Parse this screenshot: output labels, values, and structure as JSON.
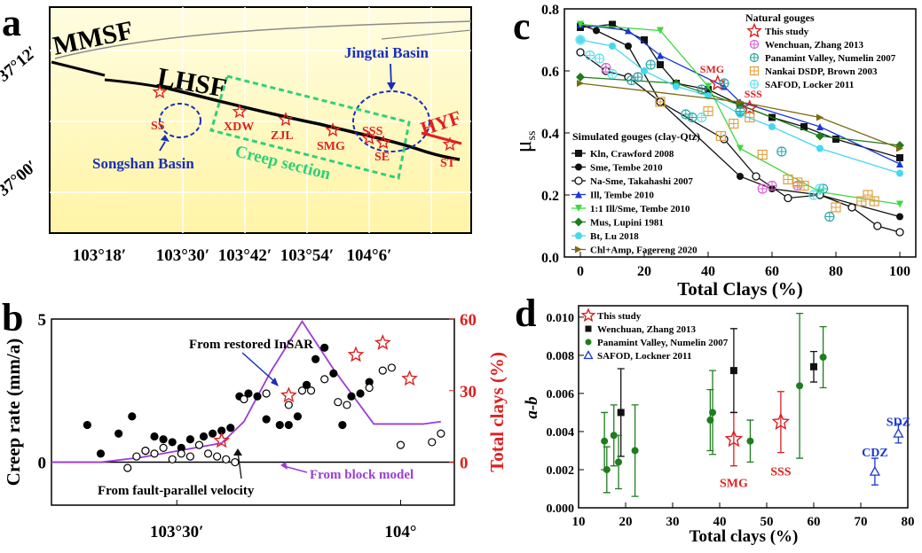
{
  "panels": {
    "a": {
      "letter": "a",
      "lat_labels": [
        "37°12′",
        "37°00′"
      ],
      "lon_labels": [
        "103°18′",
        "103°30′",
        "103°42′",
        "103°54′",
        "104°6′"
      ],
      "faults": [
        "MMSF",
        "LHSF",
        "HYF"
      ],
      "basins": [
        "Jingtai Basin",
        "Songshan Basin"
      ],
      "creep_section": "Creep section",
      "sites": [
        "SS",
        "XDW",
        "ZJL",
        "SMG",
        "SSS",
        "SE",
        "ST"
      ]
    },
    "b": {
      "letter": "b",
      "annotations": [
        "From restored InSAR",
        "From fault-parallel velocity",
        "From block model"
      ]
    },
    "c": {
      "letter": "c",
      "sites": [
        "SMG",
        "SSS"
      ],
      "legend_natural_title": "Natural gouges",
      "legend_simulated_title": "Simulated gouges (clay-Qtz)"
    },
    "d": {
      "letter": "d",
      "site_labels": [
        "SMG",
        "SSS",
        "CDZ",
        "SDZ"
      ]
    }
  },
  "chart_data": [
    {
      "panel": "b",
      "type": "scatter",
      "xlabel": "",
      "ylabel": "Creep rate (mm/a)",
      "y2label": "Total clays (%)",
      "xticks": [
        "103°30′",
        "104°"
      ],
      "xlim": [
        103.22,
        104.12
      ],
      "ylim": [
        -1.5,
        5.0
      ],
      "yticks": [
        0,
        5
      ],
      "y2lim": [
        -18,
        60
      ],
      "y2ticks": [
        0,
        30,
        60
      ],
      "series": [
        {
          "name": "From restored InSAR",
          "x": [
            103.3,
            103.33,
            103.37,
            103.4,
            103.43,
            103.45,
            103.47,
            103.49,
            103.51,
            103.53,
            103.56,
            103.58,
            103.6,
            103.62,
            103.64,
            103.66,
            103.68,
            103.7,
            103.73,
            103.75,
            103.77,
            103.79,
            103.81,
            103.83,
            103.85,
            103.87,
            103.89,
            103.91,
            103.93
          ],
          "y": [
            1.3,
            0.3,
            1.0,
            1.6,
            0.4,
            0.9,
            0.8,
            0.7,
            0.5,
            0.8,
            0.9,
            1.0,
            1.1,
            1.2,
            2.3,
            2.4,
            2.3,
            1.5,
            1.3,
            1.3,
            1.6,
            2.7,
            3.6,
            4.0,
            3.1,
            1.3,
            2.3,
            2.4,
            2.8
          ]
        },
        {
          "name": "From fault-parallel velocity",
          "x": [
            103.39,
            103.41,
            103.43,
            103.45,
            103.47,
            103.49,
            103.51,
            103.53,
            103.55,
            103.57,
            103.59,
            103.61,
            103.63,
            103.65,
            103.7,
            103.75,
            103.78,
            103.8,
            103.83,
            103.86,
            103.88,
            103.93,
            103.96,
            103.98,
            104.0,
            104.07,
            104.09
          ],
          "y": [
            -0.2,
            0.2,
            0.4,
            0.3,
            0.5,
            0.1,
            0.3,
            0.2,
            0.6,
            0.3,
            0.2,
            0.1,
            0.0,
            2.2,
            2.4,
            2.0,
            2.5,
            2.5,
            2.9,
            2.1,
            2.0,
            2.6,
            3.2,
            3.3,
            0.6,
            0.7,
            1.0
          ]
        }
      ],
      "block_model_total_clays": {
        "name": "From block model",
        "x": [
          103.22,
          103.33,
          103.42,
          103.54,
          103.6,
          103.65,
          103.71,
          103.78,
          103.85,
          103.94,
          104.05,
          104.09
        ],
        "y": [
          0,
          0,
          2,
          6,
          8,
          17,
          38,
          59,
          39,
          16,
          16,
          17
        ]
      },
      "samples_total_clays": {
        "sites": [
          "SS",
          "SMG",
          "SSS",
          "SE",
          "ST"
        ],
        "x": [
          103.6,
          103.75,
          103.9,
          103.96,
          104.02
        ],
        "y": [
          9,
          28,
          45,
          50,
          35
        ]
      }
    },
    {
      "panel": "c",
      "type": "line",
      "xlabel": "Total Clays (%)",
      "ylabel": "μss",
      "xlim": [
        -5,
        105
      ],
      "ylim": [
        0.0,
        0.8
      ],
      "xticks": [
        0,
        20,
        40,
        60,
        80,
        100
      ],
      "yticks": [
        0.0,
        0.2,
        0.4,
        0.6,
        0.8
      ],
      "series": [
        {
          "name": "Kln, Crawford 2008",
          "marker": "square",
          "color": "#111111",
          "x": [
            0,
            10,
            20,
            25,
            30,
            40,
            50,
            60,
            70,
            80,
            100
          ],
          "y": [
            0.74,
            0.75,
            0.7,
            0.62,
            0.56,
            0.54,
            0.49,
            0.45,
            0.42,
            0.38,
            0.32
          ]
        },
        {
          "name": "Sme, Tembe 2010",
          "marker": "circle-filled",
          "color": "#111111",
          "x": [
            0,
            5,
            15,
            25,
            50,
            60,
            75,
            100
          ],
          "y": [
            0.75,
            0.73,
            0.68,
            0.5,
            0.26,
            0.22,
            0.2,
            0.13
          ]
        },
        {
          "name": "Na-Sme, Takahashi 2007",
          "marker": "circle-open",
          "color": "#111111",
          "x": [
            0,
            8,
            15,
            25,
            45,
            55,
            65,
            75,
            85,
            93,
            100
          ],
          "y": [
            0.66,
            0.6,
            0.58,
            0.5,
            0.38,
            0.26,
            0.19,
            0.2,
            0.16,
            0.1,
            0.08
          ]
        },
        {
          "name": "Ill, Tembe 2010",
          "marker": "triangle-up",
          "color": "#1a37d6",
          "x": [
            0,
            15,
            25,
            45,
            50,
            75,
            100
          ],
          "y": [
            0.75,
            0.73,
            0.65,
            0.55,
            0.5,
            0.42,
            0.3
          ]
        },
        {
          "name": "1:1 Ill/Sme, Tembe 2010",
          "marker": "triangle-down",
          "color": "#3fd83f",
          "x": [
            0,
            25,
            40,
            50,
            75,
            100
          ],
          "y": [
            0.75,
            0.73,
            0.55,
            0.35,
            0.21,
            0.17
          ]
        },
        {
          "name": "Mus, Lupini 1981",
          "marker": "diamond",
          "color": "#1e7d1e",
          "x": [
            0,
            30,
            50,
            75,
            100
          ],
          "y": [
            0.58,
            0.56,
            0.49,
            0.39,
            0.36
          ]
        },
        {
          "name": "Bt, Lu 2018",
          "marker": "circle-filled",
          "color": "#44d9ee",
          "x": [
            0,
            10,
            20,
            30,
            40,
            50,
            60,
            75,
            100
          ],
          "y": [
            0.7,
            0.68,
            0.6,
            0.55,
            0.52,
            0.46,
            0.42,
            0.35,
            0.27
          ]
        },
        {
          "name": "Chl+Amp, Fagereng 2020",
          "marker": "triangle-right",
          "color": "#7c6a10",
          "x": [
            0,
            50,
            75,
            100
          ],
          "y": [
            0.56,
            0.5,
            0.45,
            0.35
          ]
        }
      ],
      "points": [
        {
          "name": "This study",
          "marker": "star-open",
          "color": "#d92020",
          "x": [
            43,
            53
          ],
          "y": [
            0.56,
            0.48
          ]
        },
        {
          "name": "Wenchuan, Zhang 2013",
          "marker": "circle-plus",
          "color": "#d95cd9",
          "x": [
            8,
            18,
            57,
            60,
            68
          ],
          "y": [
            0.61,
            0.58,
            0.22,
            0.23,
            0.23
          ]
        },
        {
          "name": "Panamint Valley, Numelin 2007",
          "marker": "circle-plus",
          "color": "#2aa6a6",
          "x": [
            16,
            18,
            22,
            33,
            35,
            38,
            45,
            50,
            63,
            76,
            78
          ],
          "y": [
            0.57,
            0.58,
            0.62,
            0.46,
            0.45,
            0.54,
            0.56,
            0.47,
            0.34,
            0.22,
            0.13
          ]
        },
        {
          "name": "Nankai DSDP, Brown 2003",
          "marker": "square-plus",
          "color": "#e0a040",
          "x": [
            25,
            40,
            44,
            48,
            53,
            57,
            65,
            68,
            70,
            80,
            88,
            90,
            92
          ],
          "y": [
            0.5,
            0.47,
            0.39,
            0.43,
            0.45,
            0.33,
            0.25,
            0.24,
            0.23,
            0.16,
            0.18,
            0.2,
            0.18
          ]
        },
        {
          "name": "SAFOD, Locker 2011",
          "marker": "circle-plus",
          "color": "#5fe0ee",
          "x": [
            0,
            3,
            6,
            10,
            38,
            73,
            75
          ],
          "y": [
            0.7,
            0.65,
            0.64,
            0.59,
            0.45,
            0.2,
            0.22
          ]
        }
      ]
    },
    {
      "panel": "d",
      "type": "scatter",
      "xlabel": "Total clays (%)",
      "ylabel": "a-b",
      "xlim": [
        10,
        80
      ],
      "ylim": [
        0.0,
        0.0106
      ],
      "xticks": [
        10,
        20,
        30,
        40,
        50,
        60,
        70,
        80
      ],
      "yticks": [
        "0.000",
        "0.002",
        "0.004",
        "0.006",
        "0.008",
        "0.010"
      ],
      "series": [
        {
          "name": "This study",
          "marker": "star-open",
          "color": "#d92020",
          "x": [
            43,
            53
          ],
          "y": [
            0.0036,
            0.0045
          ],
          "err": [
            0.0014,
            0.0016
          ]
        },
        {
          "name": "Wenchuan, Zhang 2013",
          "marker": "square",
          "color": "#111111",
          "x": [
            19,
            43,
            60
          ],
          "y": [
            0.005,
            0.0072,
            0.0074
          ],
          "err": [
            0.0023,
            0.0022,
            0.0008
          ]
        },
        {
          "name": "Panamint Valley, Numelin 2007",
          "marker": "circle-filled",
          "color": "#1e7d1e",
          "x": [
            15.5,
            16,
            17.5,
            18.5,
            22,
            38,
            38.5,
            46.5,
            57,
            62
          ],
          "y": [
            0.0035,
            0.002,
            0.0038,
            0.0024,
            0.003,
            0.0046,
            0.005,
            0.0035,
            0.0064,
            0.0079
          ],
          "err": [
            0.0015,
            0.0012,
            0.0016,
            0.0014,
            0.0024,
            0.0016,
            0.0022,
            0.0011,
            0.0038,
            0.0016
          ]
        },
        {
          "name": "SAFOD, Lockner 2011",
          "marker": "triangle-open",
          "color": "#1a37d6",
          "x": [
            73,
            78
          ],
          "y": [
            0.0019,
            0.0039
          ],
          "err": [
            0.0007,
            0.0005
          ]
        }
      ]
    }
  ]
}
